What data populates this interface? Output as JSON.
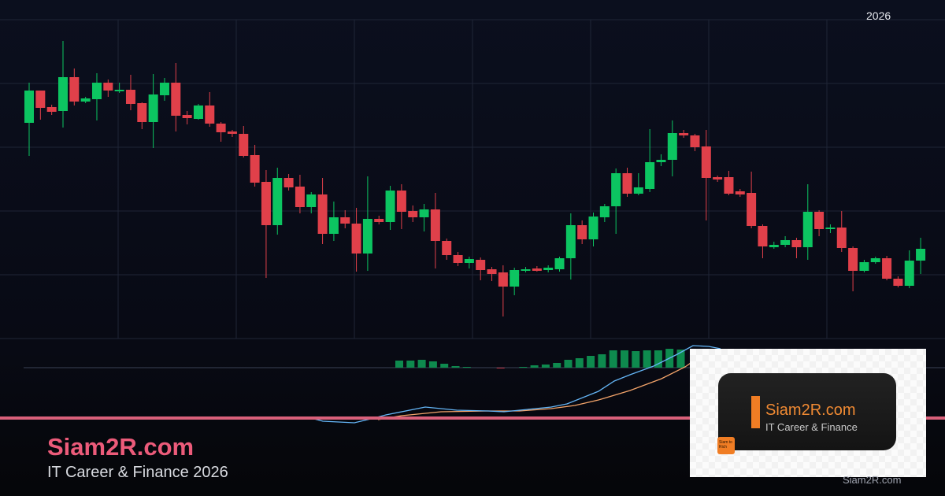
{
  "chart_data": {
    "type": "candlestick",
    "year_label": "2026",
    "ylim": [
      10,
      415
    ],
    "grid": true,
    "colors": {
      "up": "#0cc561",
      "down": "#e0404a",
      "macd": "#64b5f6",
      "signal": "#f4a46a",
      "hist_up": "#0e8a4e",
      "hist_down": "#c0394a",
      "level_line": "#d9607a",
      "grid": "#1f2536"
    },
    "candles": [
      [
        284,
        325,
        335,
        242
      ],
      [
        325,
        303,
        325,
        288
      ],
      [
        304,
        298,
        307,
        294
      ],
      [
        299,
        342,
        388,
        278
      ],
      [
        342,
        311,
        353,
        306
      ],
      [
        311,
        315,
        317,
        309
      ],
      [
        314,
        335,
        347,
        287
      ],
      [
        335,
        325,
        339,
        317
      ],
      [
        324,
        326,
        335,
        322
      ],
      [
        326,
        308,
        345,
        300
      ],
      [
        309,
        285,
        310,
        276
      ],
      [
        285,
        320,
        346,
        252
      ],
      [
        319,
        335,
        341,
        312
      ],
      [
        335,
        293,
        360,
        273
      ],
      [
        294,
        290,
        299,
        282
      ],
      [
        289,
        306,
        308,
        288
      ],
      [
        306,
        283,
        323,
        279
      ],
      [
        283,
        272,
        285,
        260
      ],
      [
        273,
        270,
        275,
        266
      ],
      [
        270,
        242,
        280,
        240
      ],
      [
        243,
        208,
        256,
        203
      ],
      [
        209,
        154,
        224,
        87
      ],
      [
        154,
        214,
        227,
        142
      ],
      [
        214,
        202,
        219,
        198
      ],
      [
        203,
        177,
        218,
        169
      ],
      [
        177,
        193,
        196,
        169
      ],
      [
        193,
        143,
        214,
        130
      ],
      [
        143,
        164,
        184,
        134
      ],
      [
        164,
        156,
        173,
        150
      ],
      [
        156,
        118,
        176,
        95
      ],
      [
        118,
        162,
        216,
        96
      ],
      [
        162,
        158,
        166,
        155
      ],
      [
        158,
        198,
        204,
        148
      ],
      [
        198,
        171,
        206,
        149
      ],
      [
        172,
        164,
        179,
        158
      ],
      [
        164,
        174,
        181,
        146
      ],
      [
        174,
        134,
        195,
        99
      ],
      [
        134,
        116,
        137,
        110
      ],
      [
        116,
        106,
        120,
        102
      ],
      [
        106,
        111,
        114,
        99
      ],
      [
        110,
        97,
        113,
        84
      ],
      [
        98,
        92,
        101,
        83
      ],
      [
        94,
        76,
        103,
        38
      ],
      [
        76,
        97,
        100,
        65
      ],
      [
        97,
        98,
        101,
        94
      ],
      [
        99,
        96,
        102,
        95
      ],
      [
        97,
        100,
        103,
        94
      ],
      [
        98,
        112,
        114,
        95
      ],
      [
        112,
        154,
        169,
        85
      ],
      [
        154,
        136,
        160,
        130
      ],
      [
        136,
        165,
        170,
        127
      ],
      [
        164,
        178,
        181,
        158
      ],
      [
        178,
        220,
        226,
        143
      ],
      [
        220,
        194,
        227,
        190
      ],
      [
        194,
        202,
        220,
        192
      ],
      [
        200,
        234,
        276,
        196
      ],
      [
        234,
        237,
        244,
        229
      ],
      [
        237,
        271,
        287,
        216
      ],
      [
        271,
        268,
        275,
        265
      ],
      [
        268,
        253,
        270,
        248
      ],
      [
        254,
        214,
        275,
        160
      ],
      [
        215,
        212,
        217,
        209
      ],
      [
        215,
        194,
        223,
        192
      ],
      [
        197,
        193,
        200,
        190
      ],
      [
        195,
        153,
        222,
        150
      ],
      [
        153,
        127,
        155,
        112
      ],
      [
        126,
        129,
        133,
        124
      ],
      [
        129,
        135,
        140,
        126
      ],
      [
        135,
        126,
        138,
        112
      ],
      [
        126,
        171,
        206,
        110
      ],
      [
        171,
        149,
        173,
        140
      ],
      [
        149,
        151,
        155,
        144
      ],
      [
        151,
        125,
        172,
        120
      ],
      [
        125,
        96,
        127,
        70
      ],
      [
        96,
        107,
        110,
        94
      ],
      [
        107,
        112,
        114,
        105
      ],
      [
        112,
        86,
        115,
        84
      ],
      [
        86,
        77,
        89,
        75
      ],
      [
        77,
        109,
        122,
        74
      ],
      [
        109,
        124,
        138,
        92
      ]
    ],
    "macd_histogram": [
      [
        0,
        9
      ],
      [
        1,
        9
      ],
      [
        2,
        10
      ],
      [
        3,
        8
      ],
      [
        4,
        5
      ],
      [
        5,
        2
      ],
      [
        6,
        1
      ],
      [
        9,
        -0.5
      ],
      [
        11,
        1
      ],
      [
        12,
        3
      ],
      [
        13,
        4
      ],
      [
        14,
        6
      ],
      [
        15,
        10
      ],
      [
        16,
        12
      ],
      [
        17,
        15
      ],
      [
        18,
        17
      ],
      [
        19,
        22
      ],
      [
        20,
        22
      ],
      [
        21,
        21
      ],
      [
        22,
        22
      ],
      [
        23,
        22
      ],
      [
        24,
        24
      ],
      [
        25,
        23
      ]
    ],
    "macd_line": [
      [
        395,
        -64
      ],
      [
        410,
        -68
      ],
      [
        450,
        -70
      ],
      [
        475,
        -64
      ],
      [
        490,
        -60
      ],
      [
        540,
        -50
      ],
      [
        580,
        -54
      ],
      [
        620,
        -55
      ],
      [
        640,
        -56
      ],
      [
        660,
        -54
      ],
      [
        700,
        -50
      ],
      [
        720,
        -46
      ],
      [
        760,
        -30
      ],
      [
        780,
        -17
      ],
      [
        800,
        -9
      ],
      [
        830,
        2
      ],
      [
        860,
        17
      ],
      [
        880,
        28
      ],
      [
        900,
        27
      ],
      [
        915,
        24
      ]
    ],
    "signal_line": [
      [
        480,
        -66
      ],
      [
        510,
        -61
      ],
      [
        560,
        -56
      ],
      [
        620,
        -55
      ],
      [
        660,
        -55
      ],
      [
        700,
        -52
      ],
      [
        730,
        -48
      ],
      [
        760,
        -41
      ],
      [
        800,
        -29
      ],
      [
        840,
        -14
      ],
      [
        870,
        1
      ],
      [
        880,
        8
      ]
    ]
  },
  "branding": {
    "title": "Siam2R.com",
    "subtitle": "IT Career & Finance 2026",
    "watermark": "Siam2R.com",
    "logo": {
      "name": "Siam2R.com",
      "tagline": "IT Career & Finance",
      "badge": "Siam to Rich"
    }
  }
}
